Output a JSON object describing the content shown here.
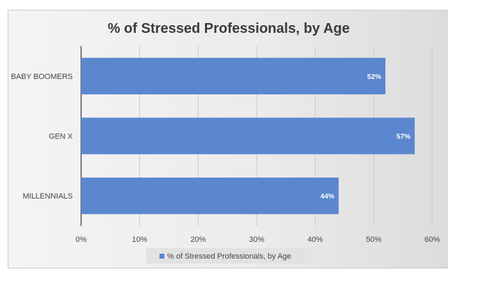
{
  "chart_data": {
    "type": "bar",
    "orientation": "horizontal",
    "title": "% of Stressed Professionals, by Age",
    "categories": [
      "BABY BOOMERS",
      "GEN X",
      "MILLENNIALS"
    ],
    "series": [
      {
        "name": "% of Stressed Professionals, by Age",
        "values": [
          52,
          57,
          44
        ],
        "data_labels": [
          "52%",
          "57%",
          "44%"
        ],
        "color": "#5b87cf"
      }
    ],
    "x_ticks": [
      "0%",
      "10%",
      "20%",
      "30%",
      "40%",
      "50%",
      "60%"
    ],
    "xlim": [
      0,
      60
    ],
    "grid": true,
    "legend_position": "bottom"
  }
}
